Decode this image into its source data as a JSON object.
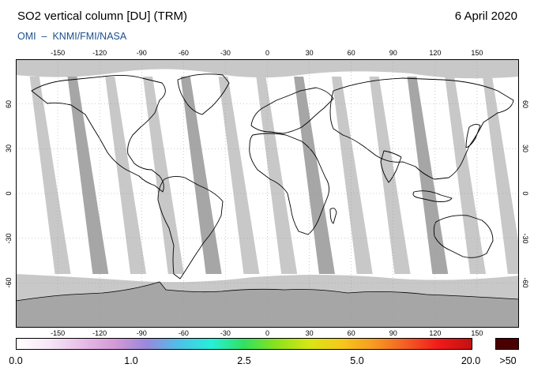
{
  "header": {
    "title": "SO2 vertical column [DU] (TRM)",
    "date": "6 April 2020",
    "subtitle": "OMI  –  KNMI/FMI/NASA"
  },
  "map": {
    "projection": "equirectangular",
    "lon_ticks": [
      "-150",
      "-120",
      "-90",
      "-60",
      "-30",
      "0",
      "30",
      "60",
      "90",
      "120",
      "150"
    ],
    "lat_ticks": [
      "60",
      "30",
      "0",
      "-30",
      "-60"
    ],
    "colors": {
      "background": "#ffffff",
      "no_data": "#c8c8c8",
      "swath": "#a6a6a6",
      "coast": "#000000",
      "grid": "#999999"
    }
  },
  "colorbar": {
    "labels": [
      "0.0",
      "1.0",
      "2.5",
      "5.0",
      "20.0"
    ],
    "overflow_label": ">50",
    "overflow_color": "#4a0000",
    "stops": [
      "#ffffff",
      "#f6e6f6",
      "#e8bde8",
      "#d49ad4",
      "#9a88dc",
      "#4ec0e8",
      "#26f0d8",
      "#32e060",
      "#8ce21c",
      "#d8e614",
      "#f6c81a",
      "#f69a22",
      "#f45c24",
      "#f01a1a",
      "#c41010"
    ]
  }
}
